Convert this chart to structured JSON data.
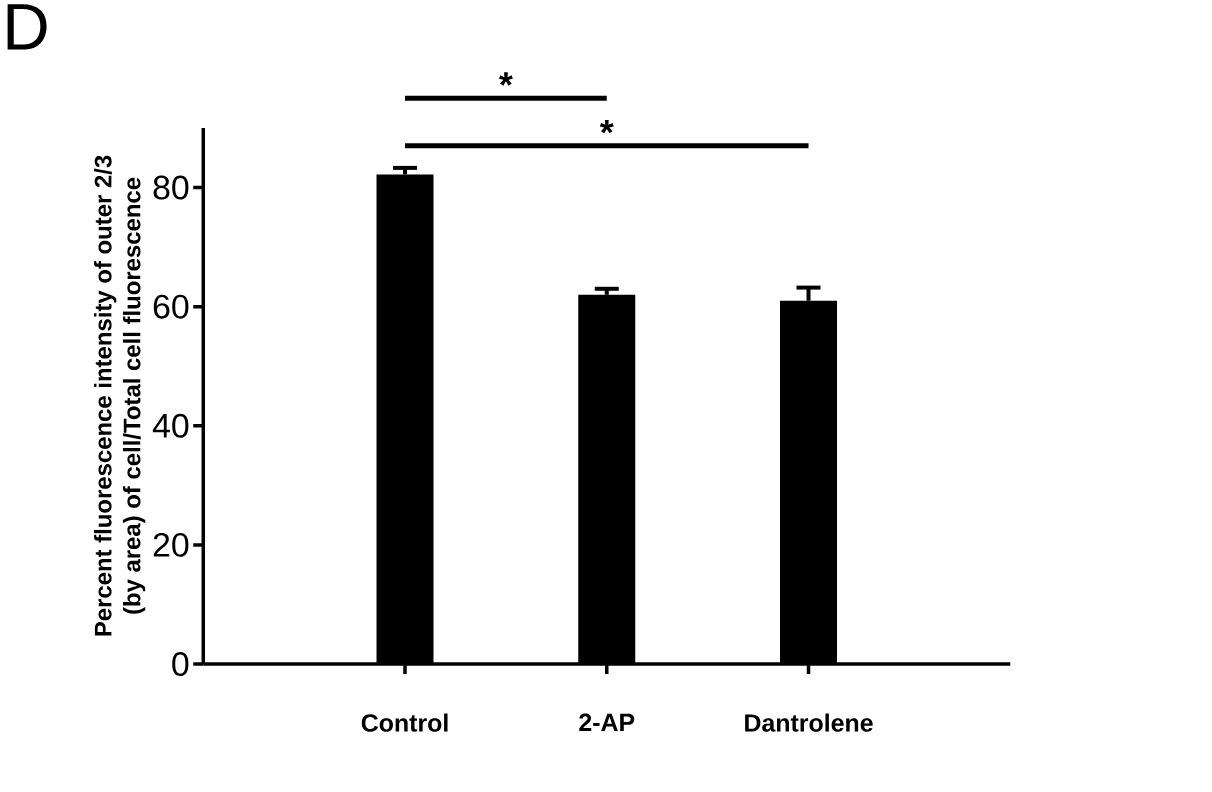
{
  "chart_data": {
    "type": "bar",
    "title": "D",
    "ylabel": "Percent fluorescence intensity of outer 2/3\n(by area) of cell/Total cell fluorescence",
    "categories": [
      "Control",
      "2-AP",
      "Dantrolene"
    ],
    "values": [
      82.2,
      62,
      61
    ],
    "errors": [
      [
        82.2,
        83.3
      ],
      [
        62,
        63
      ],
      [
        61,
        63.2
      ]
    ],
    "color": "#000000",
    "ylim": [
      0,
      90
    ],
    "yticks": [
      0,
      20,
      40,
      60,
      80
    ],
    "grid": false,
    "annotations": [
      "*",
      "*"
    ]
  }
}
